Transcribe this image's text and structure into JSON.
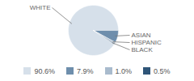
{
  "chart_data": {
    "type": "pie",
    "categories": [
      "WHITE",
      "ASIAN",
      "HISPANIC",
      "BLACK"
    ],
    "values": [
      90.6,
      7.9,
      1.0,
      0.5
    ],
    "value_labels": [
      "90.6%",
      "7.9%",
      "1.0%",
      "0.5%"
    ],
    "colors": [
      "#d6e0ea",
      "#6e8eac",
      "#a9bbcd",
      "#2f5578"
    ],
    "legend": "bottom"
  }
}
